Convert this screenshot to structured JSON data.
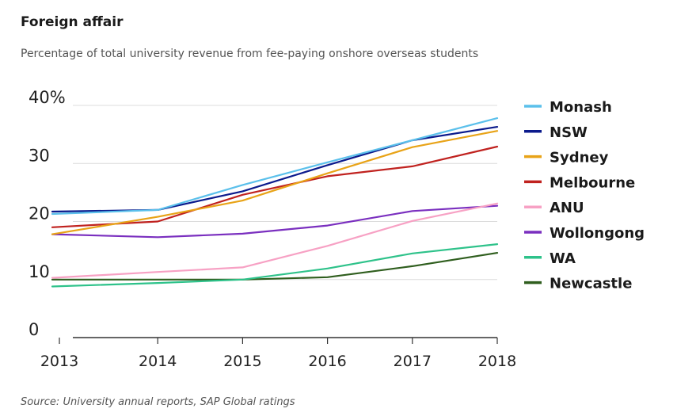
{
  "title": "Foreign affair",
  "subtitle": "Percentage of total university revenue from fee-paying onshore overseas students",
  "source": "Source: University annual reports, SAP Global ratings",
  "chart_data": {
    "type": "line",
    "x": [
      2013,
      2014,
      2015,
      2016,
      2017,
      2018
    ],
    "x_tick_labels": [
      "2013",
      "2014",
      "2015",
      "2016",
      "2017",
      "2018"
    ],
    "y_tick_labels": [
      "0",
      "10",
      "20",
      "30",
      "40%"
    ],
    "y_ticks": [
      0,
      10,
      20,
      30,
      40
    ],
    "ylim": [
      0,
      40
    ],
    "grid": true,
    "legend_placement": "right",
    "series": [
      {
        "name": "Monash",
        "color": "#5bc0eb",
        "values": [
          21.3,
          22.0,
          26.3,
          30.2,
          34.0,
          37.8
        ]
      },
      {
        "name": "NSW",
        "color": "#0b1a8c",
        "values": [
          21.7,
          22.0,
          25.2,
          29.7,
          34.0,
          36.3
        ]
      },
      {
        "name": "Sydney",
        "color": "#e8a317",
        "values": [
          17.8,
          20.8,
          23.6,
          28.3,
          32.8,
          35.6
        ]
      },
      {
        "name": "Melbourne",
        "color": "#c0221f",
        "values": [
          19.0,
          20.0,
          24.6,
          27.8,
          29.5,
          32.9
        ]
      },
      {
        "name": "ANU",
        "color": "#f7a1c4",
        "values": [
          10.3,
          11.3,
          12.1,
          15.8,
          20.1,
          23.1
        ]
      },
      {
        "name": "Wollongong",
        "color": "#7a2fbf",
        "values": [
          17.8,
          17.3,
          17.9,
          19.3,
          21.8,
          22.7
        ]
      },
      {
        "name": "WA",
        "color": "#2ec28a",
        "values": [
          8.8,
          9.4,
          10.0,
          11.9,
          14.5,
          16.1
        ]
      },
      {
        "name": "Newcastle",
        "color": "#2f5e1e",
        "values": [
          10.0,
          10.0,
          10.0,
          10.4,
          12.3,
          14.6
        ]
      }
    ]
  }
}
